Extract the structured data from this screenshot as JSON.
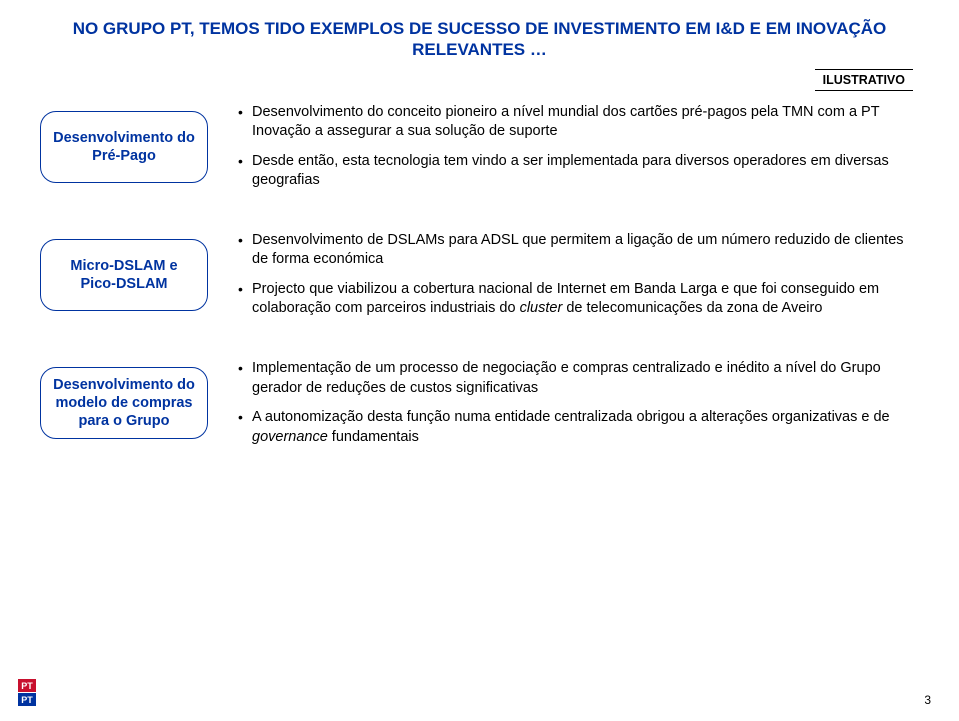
{
  "title": "NO GRUPO PT, TEMOS TIDO EXEMPLOS DE SUCESSO DE INVESTIMENTO EM I&D E EM INOVAÇÃO RELEVANTES …",
  "illustrative": "ILUSTRATIVO",
  "sections": [
    {
      "label": "Desenvolvimento do Pré-Pago",
      "items": [
        "Desenvolvimento do conceito pioneiro a nível mundial dos cartões pré-pagos pela TMN com a PT Inovação a assegurar a sua solução de suporte",
        "Desde então, esta tecnologia tem vindo a ser implementada para diversos operadores em diversas geografias"
      ]
    },
    {
      "label": "Micro-DSLAM e Pico-DSLAM",
      "items": [
        "Desenvolvimento de DSLAMs para ADSL que permitem a ligação de um número reduzido de clientes de forma económica",
        "Projecto que viabilizou a cobertura nacional de Internet em Banda Larga e que foi conseguido em colaboração com parceiros industriais do <em>cluster</em> de telecomunicações da zona de Aveiro"
      ]
    },
    {
      "label": "Desenvolvimento do modelo de compras para o Grupo",
      "items": [
        "Implementação de um processo de negociação e compras centralizado e inédito a nível do Grupo gerador de reduções de custos significativas",
        "A autonomização desta função numa entidade centralizada obrigou a alterações organizativas e de <em>governance</em> fundamentais"
      ]
    }
  ],
  "logo": {
    "top": "PT",
    "bot": "PT"
  },
  "page": "3"
}
